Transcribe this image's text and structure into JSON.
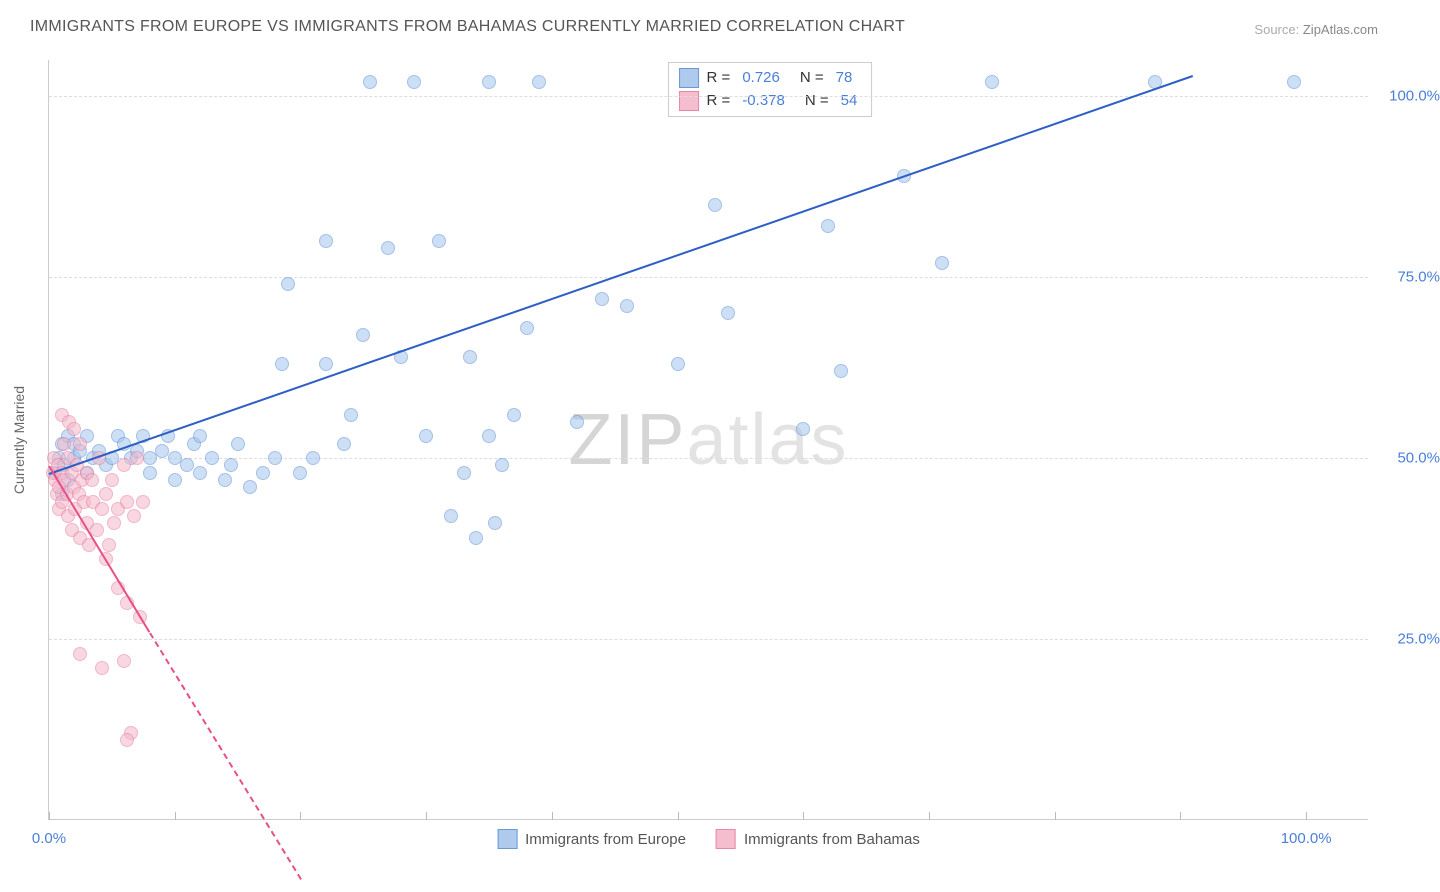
{
  "title": "IMMIGRANTS FROM EUROPE VS IMMIGRANTS FROM BAHAMAS CURRENTLY MARRIED CORRELATION CHART",
  "source_label": "Source:",
  "source_value": "ZipAtlas.com",
  "watermark_a": "ZIP",
  "watermark_b": "atlas",
  "chart": {
    "type": "scatter",
    "xlim": [
      0,
      105
    ],
    "ylim": [
      0,
      105
    ],
    "x_ticks": [
      0,
      10,
      20,
      30,
      40,
      50,
      60,
      70,
      80,
      90,
      100
    ],
    "y_grid": [
      25,
      50,
      75,
      100
    ],
    "y_tick_labels": [
      "25.0%",
      "50.0%",
      "75.0%",
      "100.0%"
    ],
    "x_tick_labels_show": [
      0,
      100
    ],
    "x_tick_label_left": "0.0%",
    "x_tick_label_right": "100.0%",
    "ylabel": "Currently Married",
    "background_color": "#ffffff",
    "grid_color": "#dddddd",
    "axis_color": "#cccccc",
    "tick_label_color": "#4a7fd8",
    "series": [
      {
        "name": "Immigrants from Europe",
        "fill": "#a6c6ec",
        "stroke": "#5a8ed6",
        "line_color": "#2d5fc4",
        "R": "0.726",
        "N": "78",
        "trend": {
          "x1": 0,
          "y1": 48,
          "x2": 91,
          "y2": 103,
          "dashed_after_x": 91
        },
        "points": [
          [
            0.5,
            48
          ],
          [
            0.8,
            50
          ],
          [
            1,
            52
          ],
          [
            1,
            45
          ],
          [
            1.2,
            49
          ],
          [
            1.5,
            47
          ],
          [
            1.5,
            53
          ],
          [
            2,
            50
          ],
          [
            2,
            52
          ],
          [
            2.5,
            51
          ],
          [
            3,
            48
          ],
          [
            3,
            53
          ],
          [
            3.5,
            50
          ],
          [
            4,
            51
          ],
          [
            4.5,
            49
          ],
          [
            5,
            50
          ],
          [
            5.5,
            53
          ],
          [
            6,
            52
          ],
          [
            6.5,
            50
          ],
          [
            7,
            51
          ],
          [
            7.5,
            53
          ],
          [
            8,
            50
          ],
          [
            8,
            48
          ],
          [
            9,
            51
          ],
          [
            9.5,
            53
          ],
          [
            10,
            50
          ],
          [
            10,
            47
          ],
          [
            11,
            49
          ],
          [
            11.5,
            52
          ],
          [
            12,
            48
          ],
          [
            12,
            53
          ],
          [
            13,
            50
          ],
          [
            14,
            47
          ],
          [
            14.5,
            49
          ],
          [
            15,
            52
          ],
          [
            16,
            46
          ],
          [
            17,
            48
          ],
          [
            18,
            50
          ],
          [
            18.5,
            63
          ],
          [
            19,
            74
          ],
          [
            20,
            48
          ],
          [
            21,
            50
          ],
          [
            22,
            80
          ],
          [
            22,
            63
          ],
          [
            23.5,
            52
          ],
          [
            24,
            56
          ],
          [
            25,
            67
          ],
          [
            25.5,
            102
          ],
          [
            27,
            79
          ],
          [
            28,
            64
          ],
          [
            29,
            102
          ],
          [
            30,
            53
          ],
          [
            31,
            80
          ],
          [
            32,
            42
          ],
          [
            33,
            48
          ],
          [
            33.5,
            64
          ],
          [
            34,
            39
          ],
          [
            35,
            53
          ],
          [
            35.5,
            41
          ],
          [
            35,
            102
          ],
          [
            36,
            49
          ],
          [
            37,
            56
          ],
          [
            38,
            68
          ],
          [
            39,
            102
          ],
          [
            42,
            55
          ],
          [
            44,
            72
          ],
          [
            46,
            71
          ],
          [
            50,
            63
          ],
          [
            53,
            85
          ],
          [
            54,
            70
          ],
          [
            60,
            54
          ],
          [
            62,
            82
          ],
          [
            63,
            62
          ],
          [
            68,
            89
          ],
          [
            71,
            77
          ],
          [
            75,
            102
          ],
          [
            88,
            102
          ],
          [
            99,
            102
          ]
        ]
      },
      {
        "name": "Immigrants from Bahamas",
        "fill": "#f5b8c9",
        "stroke": "#e77aa0",
        "line_color": "#e94f87",
        "R": "-0.378",
        "N": "54",
        "trend": {
          "x1": 0,
          "y1": 49,
          "x2": 8,
          "y2": 26,
          "dashed_after_x": 8,
          "x3": 20,
          "y3": -8
        },
        "points": [
          [
            0.3,
            48
          ],
          [
            0.4,
            50
          ],
          [
            0.5,
            47
          ],
          [
            0.6,
            45
          ],
          [
            0.7,
            49
          ],
          [
            0.8,
            46
          ],
          [
            0.8,
            43
          ],
          [
            1,
            48
          ],
          [
            1,
            44
          ],
          [
            1,
            56
          ],
          [
            1.2,
            47
          ],
          [
            1.2,
            52
          ],
          [
            1.4,
            45
          ],
          [
            1.5,
            50
          ],
          [
            1.5,
            42
          ],
          [
            1.6,
            55
          ],
          [
            1.8,
            48
          ],
          [
            1.8,
            40
          ],
          [
            2,
            46
          ],
          [
            2,
            54
          ],
          [
            2.1,
            43
          ],
          [
            2.2,
            49
          ],
          [
            2.4,
            45
          ],
          [
            2.5,
            39
          ],
          [
            2.5,
            52
          ],
          [
            2.6,
            47
          ],
          [
            2.8,
            44
          ],
          [
            3,
            48
          ],
          [
            3,
            41
          ],
          [
            3.2,
            38
          ],
          [
            3.4,
            47
          ],
          [
            3.5,
            44
          ],
          [
            3.8,
            40
          ],
          [
            4,
            50
          ],
          [
            4.2,
            43
          ],
          [
            4.5,
            45
          ],
          [
            4.5,
            36
          ],
          [
            4.8,
            38
          ],
          [
            5,
            47
          ],
          [
            5.2,
            41
          ],
          [
            5.5,
            43
          ],
          [
            5.5,
            32
          ],
          [
            6,
            49
          ],
          [
            6.2,
            44
          ],
          [
            6.2,
            30
          ],
          [
            6.8,
            42
          ],
          [
            7,
            50
          ],
          [
            7.2,
            28
          ],
          [
            7.5,
            44
          ],
          [
            2.5,
            23
          ],
          [
            6,
            22
          ],
          [
            4.2,
            21
          ],
          [
            6.5,
            12
          ],
          [
            6.2,
            11
          ]
        ]
      }
    ]
  },
  "legend_bottom": [
    {
      "label": "Immigrants from Europe",
      "fill": "#a6c6ec",
      "stroke": "#5a8ed6"
    },
    {
      "label": "Immigrants from Bahamas",
      "fill": "#f5b8c9",
      "stroke": "#e77aa0"
    }
  ]
}
